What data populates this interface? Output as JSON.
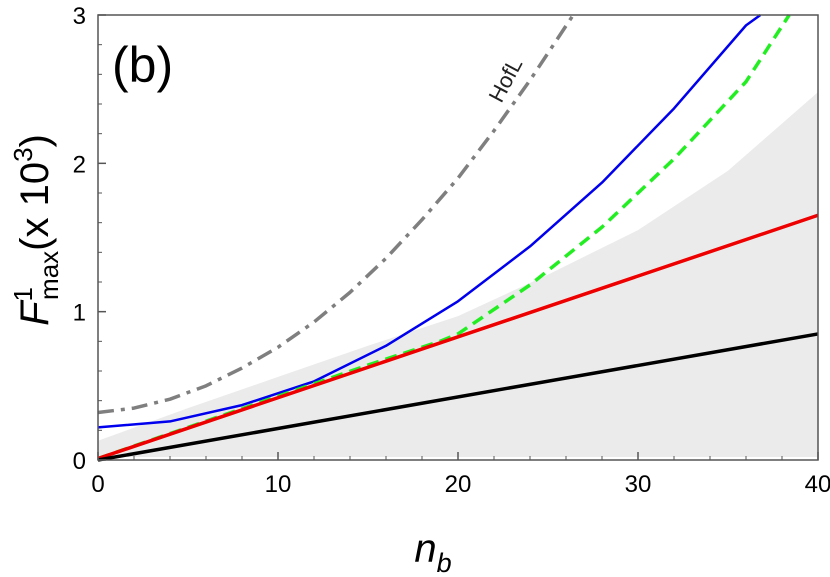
{
  "chart_data": {
    "type": "line",
    "panel_label": "(b)",
    "xlabel": {
      "main": "n",
      "sub": "b"
    },
    "ylabel": {
      "main": "F",
      "sup": "1",
      "sub": "max",
      "scale_open": "(x 10",
      "scale_sup": "3",
      "scale_close": ")"
    },
    "xlim": [
      0,
      40
    ],
    "ylim": [
      0,
      3
    ],
    "xticks": [
      0,
      10,
      20,
      30,
      40
    ],
    "xtick_labels": [
      "0",
      "10",
      "20",
      "30",
      "40"
    ],
    "yticks": [
      0,
      1,
      2,
      3
    ],
    "ytick_labels": [
      "0",
      "1",
      "2",
      "3"
    ],
    "grid": false,
    "annotations": [
      {
        "text": "HofL",
        "x": 22.4,
        "y": 2.4
      }
    ],
    "shaded_region": {
      "color": "#ebebeb",
      "x": [
        0,
        5,
        10,
        15,
        18,
        20,
        25,
        30,
        35,
        40
      ],
      "lower": [
        0.02,
        0.02,
        0.02,
        0.02,
        0.02,
        0.02,
        0.02,
        0.02,
        0.02,
        0.02
      ],
      "upper": [
        0.13,
        0.35,
        0.56,
        0.77,
        0.89,
        0.97,
        1.25,
        1.55,
        1.95,
        2.48
      ]
    },
    "series": [
      {
        "color": "#7f7f7f",
        "style": "dashdot",
        "x": [
          0,
          2,
          4,
          6,
          8,
          10,
          12,
          14,
          16,
          18,
          20,
          22,
          24,
          26.4
        ],
        "y": [
          0.32,
          0.35,
          0.41,
          0.5,
          0.62,
          0.76,
          0.93,
          1.13,
          1.36,
          1.62,
          1.9,
          2.22,
          2.56,
          3.0
        ]
      },
      {
        "color": "#0000ee",
        "style": "solid",
        "x": [
          0,
          4,
          8,
          12,
          16,
          20,
          24,
          28,
          32,
          36,
          36.8
        ],
        "y": [
          0.22,
          0.26,
          0.37,
          0.53,
          0.77,
          1.07,
          1.44,
          1.87,
          2.37,
          2.93,
          3.0
        ]
      },
      {
        "color": "#22ee22",
        "style": "dashed",
        "x": [
          0,
          5,
          10,
          15,
          19,
          20,
          24,
          28,
          32,
          36,
          38.4
        ],
        "y": [
          0.01,
          0.22,
          0.43,
          0.64,
          0.8,
          0.85,
          1.18,
          1.57,
          2.03,
          2.55,
          3.0
        ]
      },
      {
        "color": "#ee0000",
        "style": "solid",
        "x": [
          0,
          40
        ],
        "y": [
          0.01,
          1.65
        ]
      },
      {
        "color": "#000000",
        "style": "solid",
        "x": [
          0,
          40
        ],
        "y": [
          0.0,
          0.85
        ]
      }
    ]
  }
}
